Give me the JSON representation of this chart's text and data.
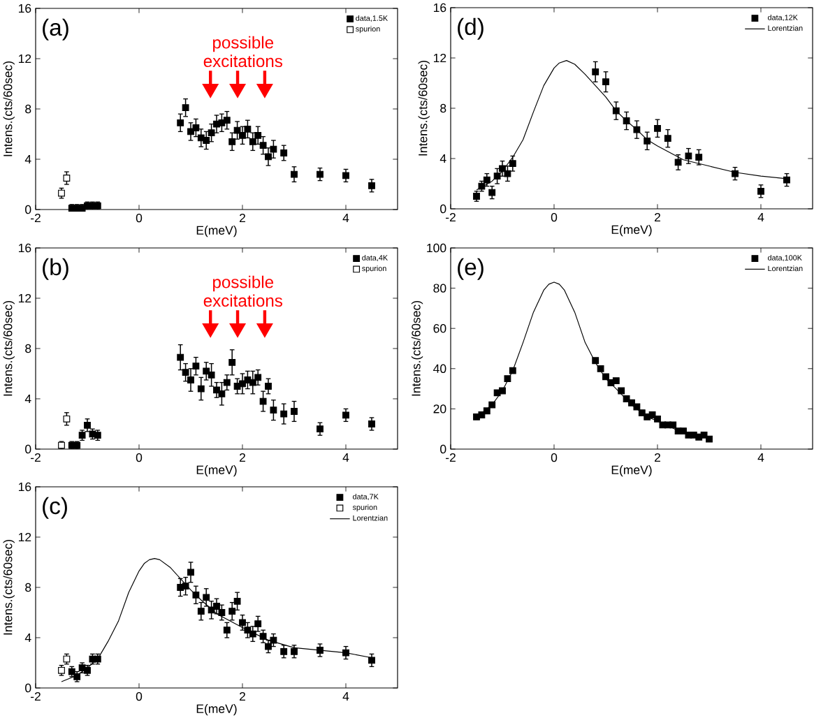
{
  "chart_data": [
    {
      "type": "scatter",
      "xlabel": "E(meV)",
      "ylabel": "Intens.(cts/60sec)",
      "xlim": [
        -2,
        5
      ],
      "ylim": [
        0,
        16
      ],
      "xticks": [
        -2,
        0,
        2,
        4
      ],
      "yticks": [
        0,
        4,
        8,
        12,
        16
      ],
      "legend": "top right",
      "annotations": [
        "(a)",
        "possible excitations"
      ],
      "series": [
        {
          "name": "data,1.5K",
          "marker": "square",
          "color": "#000000",
          "x": [
            -1.3,
            -1.2,
            -1.1,
            -1.0,
            -0.9,
            -0.8,
            0.8,
            0.9,
            1.0,
            1.1,
            1.2,
            1.3,
            1.4,
            1.5,
            1.6,
            1.7,
            1.8,
            1.9,
            2.0,
            2.1,
            2.2,
            2.3,
            2.4,
            2.5,
            2.6,
            2.8,
            3.0,
            3.5,
            4.0,
            4.5
          ],
          "values": [
            0.1,
            0.1,
            0.1,
            0.3,
            0.3,
            0.3,
            6.9,
            8.1,
            6.2,
            6.5,
            5.7,
            5.5,
            6.1,
            6.8,
            6.9,
            7.1,
            5.4,
            6.3,
            5.9,
            6.4,
            5.4,
            5.9,
            5.1,
            4.2,
            4.8,
            4.5,
            2.8,
            2.8,
            2.7,
            1.9
          ],
          "errors": [
            0.3,
            0.3,
            0.3,
            0.3,
            0.3,
            0.3,
            0.7,
            0.7,
            0.7,
            0.7,
            0.7,
            0.7,
            0.7,
            0.7,
            0.7,
            0.7,
            0.7,
            0.7,
            0.7,
            0.7,
            0.7,
            0.7,
            0.7,
            0.7,
            0.7,
            0.6,
            0.6,
            0.5,
            0.5,
            0.5
          ]
        },
        {
          "name": "spurion",
          "marker": "square",
          "color": "#ffffff",
          "x": [
            -1.5,
            -1.4
          ],
          "values": [
            1.3,
            2.5
          ],
          "errors": [
            0.4,
            0.5
          ]
        }
      ]
    },
    {
      "type": "scatter",
      "xlabel": "E(meV)",
      "ylabel": "Intens.(cts/60sec)",
      "xlim": [
        -2,
        5
      ],
      "ylim": [
        0,
        16
      ],
      "xticks": [
        -2,
        0,
        2,
        4
      ],
      "yticks": [
        0,
        4,
        8,
        12,
        16
      ],
      "legend": "top right",
      "annotations": [
        "(b)",
        "possible excitations"
      ],
      "series": [
        {
          "name": "data,4K",
          "marker": "square",
          "color": "#000000",
          "x": [
            -1.3,
            -1.2,
            -1.1,
            -1.0,
            -0.9,
            -0.8,
            0.8,
            0.9,
            1.0,
            1.1,
            1.2,
            1.3,
            1.4,
            1.5,
            1.6,
            1.7,
            1.8,
            1.9,
            2.0,
            2.1,
            2.2,
            2.3,
            2.4,
            2.5,
            2.6,
            2.8,
            3.0,
            3.5,
            4.0,
            4.5
          ],
          "values": [
            0.3,
            0.3,
            1.1,
            1.9,
            1.2,
            1.1,
            7.3,
            6.1,
            5.5,
            6.6,
            4.8,
            6.2,
            5.9,
            4.7,
            4.4,
            5.3,
            6.9,
            5.0,
            5.2,
            5.5,
            5.3,
            5.7,
            3.8,
            5.0,
            3.1,
            2.8,
            3.0,
            1.6,
            2.7,
            2.0
          ],
          "errors": [
            0.3,
            0.3,
            0.4,
            0.5,
            0.4,
            0.4,
            1.0,
            0.7,
            0.9,
            0.7,
            0.9,
            0.7,
            0.9,
            0.6,
            0.9,
            0.6,
            1.0,
            0.6,
            0.8,
            0.7,
            0.9,
            0.6,
            0.8,
            0.6,
            0.8,
            0.8,
            0.8,
            0.5,
            0.5,
            0.5
          ]
        },
        {
          "name": "spurion",
          "marker": "square",
          "color": "#ffffff",
          "x": [
            -1.5,
            -1.4
          ],
          "values": [
            0.3,
            2.4
          ],
          "errors": [
            0.3,
            0.5
          ]
        }
      ]
    },
    {
      "type": "scatter",
      "xlabel": "E(meV)",
      "ylabel": "Intens.(cts/60sec)",
      "xlim": [
        -2,
        5
      ],
      "ylim": [
        0,
        16
      ],
      "xticks": [
        -2,
        0,
        2,
        4
      ],
      "yticks": [
        0,
        4,
        8,
        12,
        16
      ],
      "legend": "top right",
      "annotations": [
        "(c)"
      ],
      "series": [
        {
          "name": "data,7K",
          "marker": "square",
          "color": "#000000",
          "x": [
            -1.3,
            -1.2,
            -1.1,
            -1.0,
            -0.9,
            -0.8,
            0.8,
            0.9,
            1.0,
            1.1,
            1.2,
            1.3,
            1.4,
            1.5,
            1.6,
            1.7,
            1.8,
            1.9,
            2.0,
            2.1,
            2.2,
            2.3,
            2.4,
            2.5,
            2.6,
            2.8,
            3.0,
            3.5,
            4.0,
            4.5
          ],
          "values": [
            1.3,
            0.9,
            1.6,
            1.4,
            2.3,
            2.3,
            8.0,
            8.1,
            9.2,
            7.4,
            6.1,
            7.2,
            6.2,
            6.5,
            6.0,
            4.6,
            6.1,
            6.9,
            5.2,
            4.6,
            4.3,
            5.1,
            4.1,
            3.3,
            3.8,
            2.9,
            2.9,
            3.0,
            2.8,
            2.2
          ],
          "errors": [
            0.4,
            0.4,
            0.4,
            0.4,
            0.4,
            0.4,
            0.7,
            0.7,
            0.8,
            0.7,
            0.7,
            0.7,
            0.7,
            0.6,
            0.6,
            0.6,
            0.7,
            0.7,
            0.6,
            0.6,
            0.6,
            0.6,
            0.5,
            0.5,
            0.5,
            0.5,
            0.5,
            0.5,
            0.5,
            0.5
          ]
        },
        {
          "name": "spurion",
          "marker": "square",
          "color": "#ffffff",
          "x": [
            -1.5,
            -1.4
          ],
          "values": [
            1.4,
            2.3
          ],
          "errors": [
            0.4,
            0.4
          ]
        },
        {
          "name": "Lorentzian",
          "type": "line",
          "marker": "none",
          "color": "#000000",
          "x": [
            -1.5,
            -1.2,
            -1.0,
            -0.8,
            -0.6,
            -0.4,
            -0.2,
            0,
            0.1,
            0.2,
            0.3,
            0.4,
            0.6,
            0.8,
            1.0,
            1.2,
            1.5,
            2.0,
            2.5,
            3.0,
            3.5,
            4.0,
            4.5
          ],
          "values": [
            0.5,
            1.0,
            1.6,
            2.3,
            3.7,
            5.3,
            7.6,
            9.3,
            9.9,
            10.2,
            10.3,
            10.2,
            9.6,
            8.7,
            7.8,
            7.0,
            5.9,
            4.8,
            3.8,
            3.2,
            3.0,
            2.8,
            2.4
          ]
        }
      ]
    },
    {
      "type": "scatter",
      "xlabel": "E(meV)",
      "ylabel": "Intens.(cts/60sec)",
      "xlim": [
        -2,
        5
      ],
      "ylim": [
        0,
        16
      ],
      "xticks": [
        -2,
        0,
        2,
        4
      ],
      "yticks": [
        0,
        4,
        8,
        12,
        16
      ],
      "legend": "top right",
      "annotations": [
        "(d)"
      ],
      "series": [
        {
          "name": "data,12K",
          "marker": "square",
          "color": "#000000",
          "x": [
            -1.5,
            -1.4,
            -1.3,
            -1.2,
            -1.1,
            -1.0,
            -0.9,
            -0.8,
            0.8,
            1.0,
            1.2,
            1.4,
            1.6,
            1.8,
            2.0,
            2.2,
            2.4,
            2.6,
            2.8,
            3.5,
            4.0,
            4.5
          ],
          "values": [
            1.0,
            1.8,
            2.3,
            1.3,
            2.6,
            3.2,
            2.8,
            3.6,
            10.9,
            10.1,
            7.8,
            7.0,
            6.3,
            5.4,
            6.4,
            5.6,
            3.7,
            4.2,
            4.1,
            2.8,
            1.4,
            2.3
          ],
          "errors": [
            0.4,
            0.4,
            0.5,
            0.5,
            0.6,
            0.6,
            0.6,
            0.6,
            0.8,
            0.8,
            0.7,
            0.7,
            0.7,
            0.7,
            0.7,
            0.7,
            0.6,
            0.6,
            0.6,
            0.5,
            0.5,
            0.5
          ]
        },
        {
          "name": "Lorentzian",
          "type": "line",
          "marker": "none",
          "color": "#000000",
          "x": [
            -1.5,
            -1.2,
            -1.0,
            -0.8,
            -0.6,
            -0.4,
            -0.2,
            0,
            0.1,
            0.24,
            0.4,
            0.6,
            0.8,
            1.0,
            1.2,
            1.4,
            1.6,
            1.8,
            2.0,
            2.5,
            3.0,
            3.5,
            4.0,
            4.5
          ],
          "values": [
            1.5,
            2.2,
            3.0,
            4.1,
            5.5,
            7.7,
            9.8,
            11.2,
            11.6,
            11.8,
            11.5,
            10.7,
            9.8,
            8.9,
            7.8,
            7.0,
            6.3,
            5.5,
            5.0,
            3.9,
            3.4,
            2.9,
            2.6,
            2.4
          ]
        }
      ]
    },
    {
      "type": "scatter",
      "xlabel": "E(meV)",
      "ylabel": "Intens.(cts/60sec)",
      "xlim": [
        -2,
        5
      ],
      "ylim": [
        0,
        100
      ],
      "xticks": [
        -2,
        0,
        2,
        4
      ],
      "yticks": [
        0,
        20,
        40,
        60,
        80,
        100
      ],
      "legend": "top right",
      "annotations": [
        "(e)"
      ],
      "series": [
        {
          "name": "data,100K",
          "marker": "square",
          "color": "#000000",
          "x": [
            -1.5,
            -1.4,
            -1.3,
            -1.2,
            -1.1,
            -1.0,
            -0.9,
            -0.8,
            0.8,
            0.9,
            1.0,
            1.1,
            1.2,
            1.3,
            1.4,
            1.5,
            1.6,
            1.7,
            1.8,
            1.9,
            2.0,
            2.1,
            2.2,
            2.3,
            2.4,
            2.5,
            2.6,
            2.7,
            2.8,
            2.9,
            3.0
          ],
          "values": [
            16,
            17,
            19,
            22,
            28,
            29,
            35,
            39,
            44,
            40,
            36,
            33,
            34,
            29,
            25,
            23,
            21,
            18,
            16,
            17,
            15,
            12,
            12,
            12,
            9,
            9,
            7,
            7,
            6,
            7,
            5
          ]
        },
        {
          "name": "Lorentzian",
          "type": "line",
          "marker": "none",
          "color": "#000000",
          "x": [
            -1.5,
            -1.2,
            -1.0,
            -0.8,
            -0.6,
            -0.4,
            -0.2,
            -0.1,
            0,
            0.1,
            0.2,
            0.4,
            0.6,
            0.8,
            1.0,
            1.2,
            1.5,
            1.8,
            2.0,
            2.5,
            3.0
          ],
          "values": [
            16,
            22,
            29,
            39,
            53,
            68,
            79,
            82,
            83,
            82,
            79,
            68,
            53,
            43,
            35,
            30,
            22,
            16,
            14,
            8,
            6
          ]
        }
      ]
    }
  ]
}
